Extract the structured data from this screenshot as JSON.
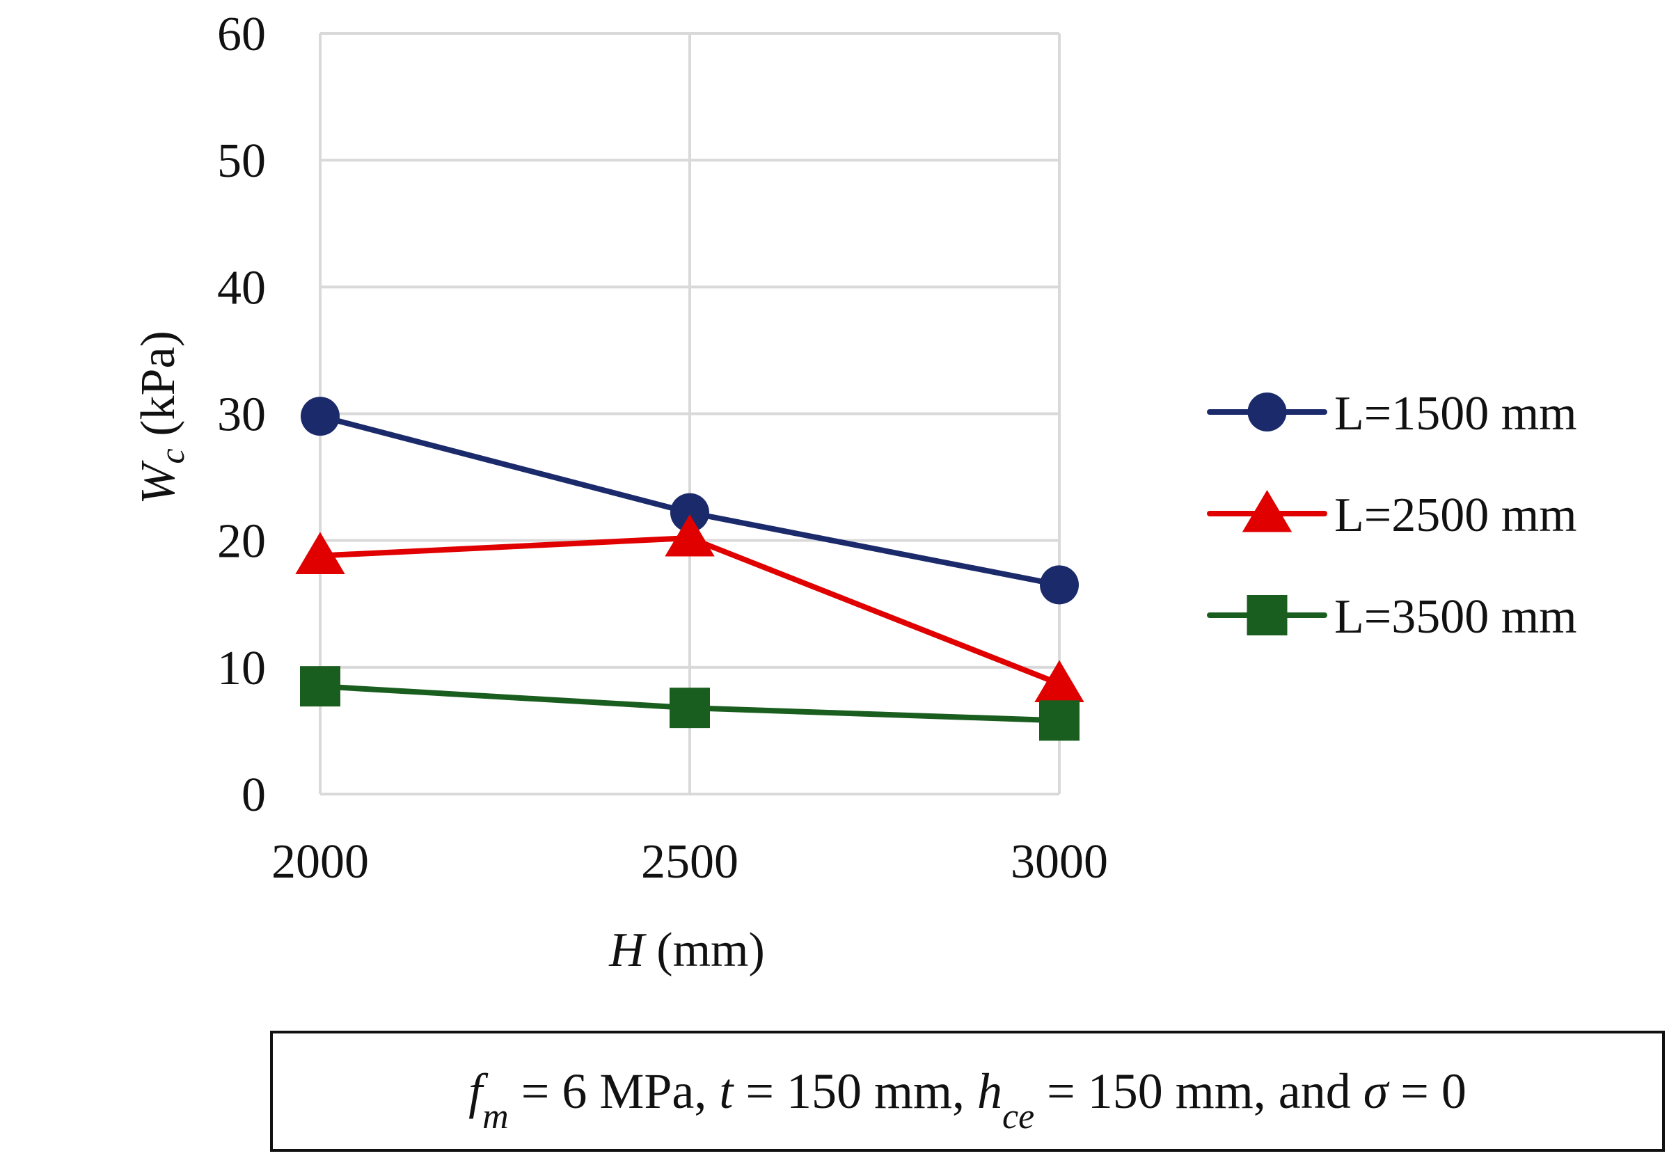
{
  "chart_data": {
    "type": "line",
    "title": "",
    "x": [
      2000,
      2500,
      3000
    ],
    "xlim": [
      2000,
      3000
    ],
    "ylim": [
      0,
      60
    ],
    "y_ticks": [
      "0",
      "10",
      "20",
      "30",
      "40",
      "50",
      "60"
    ],
    "x_ticks": [
      "2000",
      "2500",
      "3000"
    ],
    "grid": true,
    "xlabel": {
      "var": "H",
      "unit": " (mm)"
    },
    "ylabel": {
      "var": "W",
      "sub": "c",
      "unit": " (kPa)"
    },
    "legend_position": "right",
    "series": [
      {
        "name": "L=1500 mm",
        "marker": "circle",
        "color": "#1b2a6b",
        "values": [
          29.8,
          22.2,
          16.5
        ]
      },
      {
        "name": "L=2500 mm",
        "marker": "triangle",
        "color": "#e00000",
        "values": [
          18.8,
          20.2,
          8.7
        ]
      },
      {
        "name": "L=3500 mm",
        "marker": "square",
        "color": "#1a5e1f",
        "values": [
          8.5,
          6.8,
          5.8
        ]
      }
    ]
  },
  "caption": {
    "parts": [
      {
        "t": "f",
        "i": true
      },
      {
        "t": "m",
        "i": true,
        "sub": true
      },
      {
        "t": " = 6 MPa, "
      },
      {
        "t": "t",
        "i": true
      },
      {
        "t": " = 150 mm, "
      },
      {
        "t": "h",
        "i": true
      },
      {
        "t": "ce",
        "i": true,
        "sub": true
      },
      {
        "t": " = 150 mm, and "
      },
      {
        "t": "σ",
        "i": true
      },
      {
        "t": " = 0"
      }
    ]
  },
  "colors": {
    "grid": "#d9d9d9",
    "axis": "#bfbfbf",
    "text": "#111111"
  }
}
